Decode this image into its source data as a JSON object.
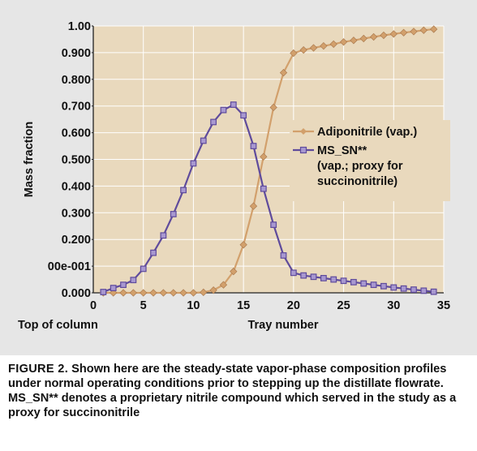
{
  "chart_data": {
    "type": "line",
    "title": "",
    "xlabel": "Tray number",
    "xlabel_extra": "Top of column",
    "ylabel": "Mass fraction",
    "xlim": [
      0,
      35
    ],
    "ylim": [
      0,
      1
    ],
    "grid": true,
    "legend_position": "right",
    "x_ticks": [
      0,
      5,
      10,
      15,
      20,
      25,
      30,
      35
    ],
    "x_tick_labels": [
      "0",
      "5",
      "10",
      "15",
      "20",
      "25",
      "30",
      "35"
    ],
    "y_ticks": [
      0,
      0.1,
      0.2,
      0.3,
      0.4,
      0.5,
      0.6,
      0.7,
      0.8,
      0.9,
      1.0
    ],
    "y_tick_labels": [
      "0.000",
      "00e-001",
      "0.200",
      "0.300",
      "0.400",
      "0.500",
      "0.600",
      "0.700",
      "0.800",
      "0.900",
      "1.00"
    ],
    "x": [
      1,
      2,
      3,
      4,
      5,
      6,
      7,
      8,
      9,
      10,
      11,
      12,
      13,
      14,
      15,
      16,
      17,
      18,
      19,
      20,
      21,
      22,
      23,
      24,
      25,
      26,
      27,
      28,
      29,
      30,
      31,
      32,
      33,
      34
    ],
    "series": [
      {
        "name": "Adiponitrile (vap.)",
        "marker": "diamond",
        "color": "#d2a06c",
        "values": [
          0.0,
          0.0,
          0.0,
          0.0,
          0.0,
          0.0,
          0.0,
          0.0,
          0.0,
          0.0,
          0.002,
          0.01,
          0.03,
          0.08,
          0.18,
          0.325,
          0.51,
          0.695,
          0.825,
          0.898,
          0.91,
          0.918,
          0.925,
          0.932,
          0.94,
          0.946,
          0.953,
          0.959,
          0.965,
          0.97,
          0.975,
          0.979,
          0.984,
          0.988
        ]
      },
      {
        "name": "MS_SN** (vap.; proxy for succinonitrile)",
        "marker": "square",
        "color": "#5f4b9c",
        "values": [
          0.003,
          0.018,
          0.03,
          0.048,
          0.09,
          0.15,
          0.215,
          0.295,
          0.385,
          0.485,
          0.57,
          0.64,
          0.685,
          0.705,
          0.665,
          0.55,
          0.39,
          0.255,
          0.14,
          0.075,
          0.065,
          0.06,
          0.055,
          0.05,
          0.045,
          0.04,
          0.035,
          0.03,
          0.025,
          0.02,
          0.016,
          0.012,
          0.008,
          0.004
        ]
      }
    ],
    "legend_lines": [
      [
        "Adiponitrile (vap.)"
      ],
      [
        "MS_SN**",
        "(vap.; proxy for",
        "succinonitrile)"
      ]
    ]
  },
  "caption": {
    "label": "FIGURE 2.",
    "text": "Shown here are the steady-state vapor-phase composition profiles under normal operating conditions prior to stepping up the distillate flowrate. MS_SN** denotes a proprietary nitrile compound which served in the study as a proxy for succinonitrile"
  },
  "colors": {
    "plot_background": "#e9d9bd",
    "figure_background": "#e6e6e6",
    "grid": "#ffffff"
  }
}
